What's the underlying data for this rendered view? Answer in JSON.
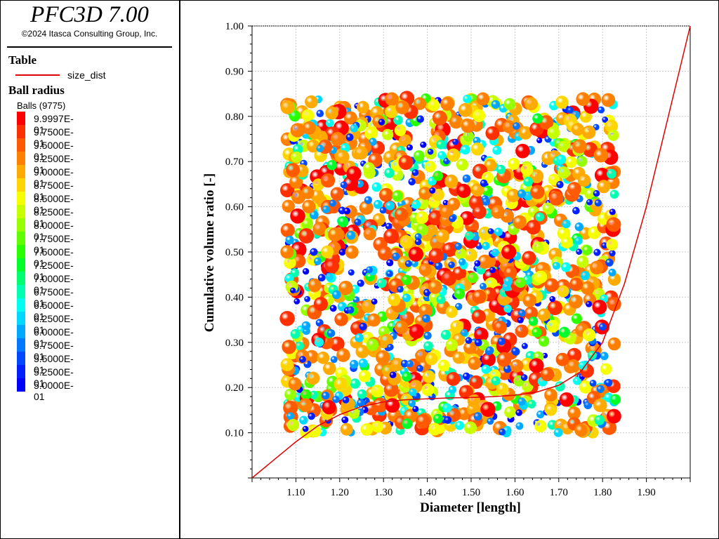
{
  "app": {
    "title": "PFC3D 7.00",
    "copyright": "©2024 Itasca Consulting Group, Inc."
  },
  "sidebar": {
    "table_heading": "Table",
    "table_series": "size_dist",
    "ball_heading": "Ball radius",
    "balls_label": "Balls (9775)",
    "legend": [
      {
        "label": "9.9997E-01",
        "color": "#ff0000"
      },
      {
        "label": "9.7500E-01",
        "color": "#ff3000"
      },
      {
        "label": "9.5000E-01",
        "color": "#ff5a00"
      },
      {
        "label": "9.2500E-01",
        "color": "#ff8000"
      },
      {
        "label": "9.0000E-01",
        "color": "#ffaa00"
      },
      {
        "label": "8.7500E-01",
        "color": "#ffd500"
      },
      {
        "label": "8.5000E-01",
        "color": "#f6ff00"
      },
      {
        "label": "8.2500E-01",
        "color": "#c8ff00"
      },
      {
        "label": "8.0000E-01",
        "color": "#96ff00"
      },
      {
        "label": "7.7500E-01",
        "color": "#60ff00"
      },
      {
        "label": "7.5000E-01",
        "color": "#2aff00"
      },
      {
        "label": "7.2500E-01",
        "color": "#00ff2a"
      },
      {
        "label": "7.0000E-01",
        "color": "#00ff70"
      },
      {
        "label": "6.7500E-01",
        "color": "#00ffb0"
      },
      {
        "label": "6.5000E-01",
        "color": "#00fff0"
      },
      {
        "label": "6.2500E-01",
        "color": "#00d8ff"
      },
      {
        "label": "6.0000E-01",
        "color": "#00a8ff"
      },
      {
        "label": "5.7500E-01",
        "color": "#0078ff"
      },
      {
        "label": "5.5000E-01",
        "color": "#0048ff"
      },
      {
        "label": "5.2500E-01",
        "color": "#0020ff"
      },
      {
        "label": "5.0000E-01",
        "color": "#0000ff"
      }
    ]
  },
  "chart_data": {
    "type": "line",
    "xlabel": "Diameter [length]",
    "ylabel": "Cumulative volume ratio [-]",
    "xlim": [
      1.0,
      2.0
    ],
    "ylim": [
      0.0,
      1.0
    ],
    "xticks": [
      "1.10",
      "1.20",
      "1.30",
      "1.40",
      "1.50",
      "1.60",
      "1.70",
      "1.80",
      "1.90"
    ],
    "yticks": [
      "0.10",
      "0.20",
      "0.30",
      "0.40",
      "0.50",
      "0.60",
      "0.70",
      "0.80",
      "0.90",
      "1.00"
    ],
    "grid": true,
    "series": [
      {
        "name": "size_dist",
        "color": "#e00000",
        "x": [
          1.0,
          1.05,
          1.1,
          1.15,
          1.2,
          1.25,
          1.3,
          1.35,
          1.4,
          1.45,
          1.5,
          1.55,
          1.6,
          1.65,
          1.7,
          1.75,
          1.8,
          1.85,
          1.9,
          1.95,
          2.0
        ],
        "y": [
          0.0,
          0.04,
          0.08,
          0.115,
          0.14,
          0.158,
          0.168,
          0.173,
          0.175,
          0.177,
          0.178,
          0.18,
          0.183,
          0.19,
          0.205,
          0.235,
          0.3,
          0.43,
          0.6,
          0.8,
          1.0
        ]
      }
    ],
    "overlay": {
      "description_hidden": true,
      "x_range": [
        1.08,
        1.83
      ],
      "y_range": [
        0.1,
        0.84
      ]
    }
  }
}
